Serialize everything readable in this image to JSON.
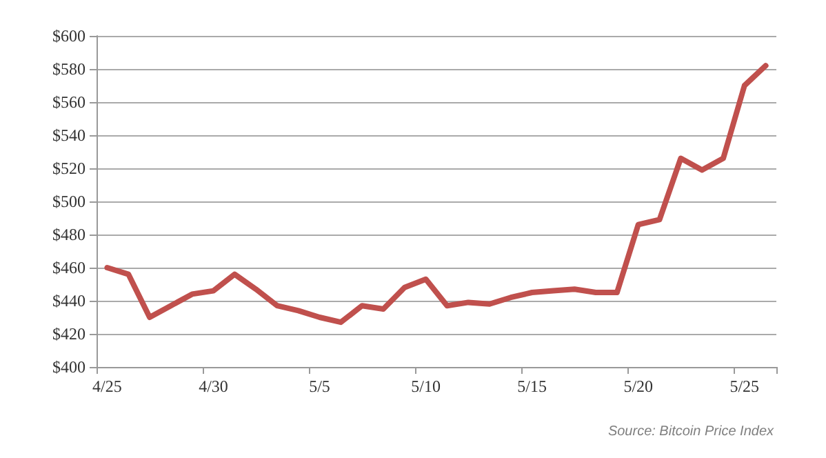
{
  "chart_data": {
    "type": "line",
    "categories": [
      "4/25",
      null,
      null,
      null,
      null,
      "4/30",
      null,
      null,
      null,
      null,
      "5/5",
      null,
      null,
      null,
      null,
      "5/10",
      null,
      null,
      null,
      null,
      "5/15",
      null,
      null,
      null,
      null,
      "5/20",
      null,
      null,
      null,
      null,
      "5/25",
      null
    ],
    "series": [
      {
        "color": "#c0504d",
        "values": [
          460,
          456,
          430,
          437,
          444,
          446,
          456,
          447,
          437,
          434,
          430,
          427,
          437,
          435,
          448,
          453,
          437,
          439,
          438,
          442,
          445,
          446,
          447,
          445,
          445,
          486,
          489,
          526,
          519,
          526,
          570,
          582
        ]
      }
    ],
    "ylim": [
      400,
      600
    ],
    "yticks": [
      {
        "value": 400,
        "label": "$400"
      },
      {
        "value": 420,
        "label": "$420"
      },
      {
        "value": 440,
        "label": "$440"
      },
      {
        "value": 460,
        "label": "$460"
      },
      {
        "value": 480,
        "label": "$480"
      },
      {
        "value": 500,
        "label": "$500"
      },
      {
        "value": 520,
        "label": "$520"
      },
      {
        "value": 540,
        "label": "$540"
      },
      {
        "value": 560,
        "label": "$560"
      },
      {
        "value": 580,
        "label": "$580"
      },
      {
        "value": 600,
        "label": "$600"
      }
    ],
    "grid": "y",
    "marker": "none",
    "line_style": "solid",
    "annotations": [
      "Source: Bitcoin Price Index"
    ]
  }
}
